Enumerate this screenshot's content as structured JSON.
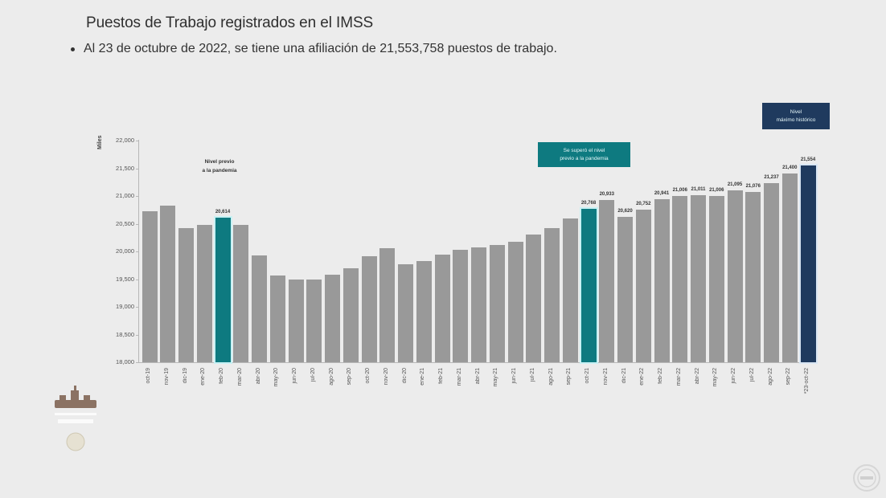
{
  "header": {
    "title": "Puestos de Trabajo registrados en el IMSS",
    "bullet": "Al 23 de octubre de 2022, se tiene una afiliación de 21,553,758 puestos de trabajo."
  },
  "chart": {
    "unit_label": "Miles",
    "y_ticks": [
      "22,000",
      "21,500",
      "21,000",
      "20,500",
      "20,000",
      "19,500",
      "19,000",
      "18,500",
      "18,000"
    ],
    "callouts": {
      "pre_pandemic_label": "Nivel previo\na la pandemia",
      "surpassed_label": "Se superó el nivel\nprevio a la pandemia",
      "max_label": "Nivel\nmáximo histórico"
    },
    "colors": {
      "bar": "#999999",
      "pre_pandemic": "#0e7a80",
      "max": "#1f3a5e",
      "callout_teal": "#0e7a80",
      "callout_navy": "#1f3a5e"
    }
  },
  "chart_data": {
    "type": "bar",
    "title": "Puestos de Trabajo registrados en el IMSS",
    "xlabel": "",
    "ylabel": "Miles",
    "ylim": [
      18000,
      22000
    ],
    "grid": false,
    "categories": [
      "oct-19",
      "nov-19",
      "dic-19",
      "ene-20",
      "feb-20",
      "mar-20",
      "abr-20",
      "may-20",
      "jun-20",
      "jul-20",
      "ago-20",
      "sep-20",
      "oct-20",
      "nov-20",
      "dic-20",
      "ene-21",
      "feb-21",
      "mar-21",
      "abr-21",
      "may-21",
      "jun-21",
      "jul-21",
      "ago-21",
      "sep-21",
      "oct-21",
      "nov-21",
      "dic-21",
      "ene-22",
      "feb-22",
      "mar-22",
      "abr-22",
      "may-22",
      "jun-22",
      "jul-22",
      "ago-22",
      "sep-22",
      "*23-oct-22"
    ],
    "values": [
      20730,
      20820,
      20420,
      20480,
      20614,
      20480,
      19930,
      19570,
      19500,
      19500,
      19580,
      19700,
      19910,
      20060,
      19770,
      19820,
      19940,
      20030,
      20070,
      20110,
      20170,
      20300,
      20420,
      20600,
      20768,
      20933,
      20620,
      20752,
      20941,
      21006,
      21011,
      21006,
      21095,
      21076,
      21237,
      21400,
      21554
    ],
    "data_labels": {
      "4": "20,614",
      "24": "20,768",
      "25": "20,933",
      "26": "20,620",
      "27": "20,752",
      "28": "20,941",
      "29": "21,006",
      "30": "21,011",
      "31": "21,006",
      "32": "21,095",
      "33": "21,076",
      "34": "21,237",
      "35": "21,400",
      "36": "21,554"
    },
    "highlights": {
      "pre_pandemic_index": 4,
      "surpassed_index": 24,
      "max_index": 36
    },
    "annotations": [
      "Nivel previo a la pandemia",
      "Se superó el nivel previo a la pandemia",
      "Nivel máximo histórico"
    ]
  }
}
